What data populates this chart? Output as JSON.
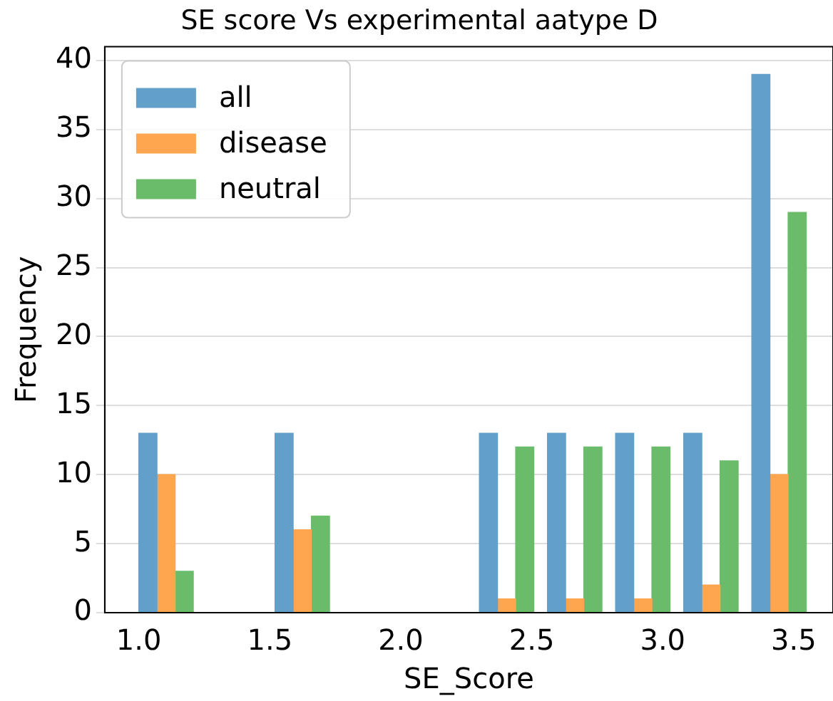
{
  "chart_data": {
    "type": "histogram",
    "title": "SE score Vs experimental aatype D",
    "xlabel": "SE_Score",
    "ylabel": "Frequency",
    "bins": [
      1.0,
      1.26,
      1.52,
      1.78,
      2.04,
      2.3,
      2.56,
      2.82,
      3.08,
      3.34,
      3.6
    ],
    "series": [
      {
        "name": "all",
        "color": "#62a0ca",
        "values": [
          13,
          0,
          13,
          0,
          0,
          13,
          13,
          13,
          13,
          39
        ]
      },
      {
        "name": "disease",
        "color": "#fea54f",
        "values": [
          10,
          0,
          6,
          0,
          0,
          1,
          1,
          1,
          2,
          10
        ]
      },
      {
        "name": "neutral",
        "color": "#6abc6a",
        "values": [
          3,
          0,
          7,
          0,
          0,
          12,
          12,
          12,
          11,
          29
        ]
      }
    ],
    "xlim": [
      0.87,
      3.65
    ],
    "xticks": [
      {
        "value": 1,
        "label": "1.0"
      },
      1.5,
      {
        "value": 2,
        "label": "2.0"
      },
      2.5,
      {
        "value": 3,
        "label": "3.0"
      },
      3.5
    ],
    "ylim": [
      0,
      41
    ],
    "yticks": [
      0,
      5,
      10,
      15,
      20,
      25,
      30,
      35,
      40
    ],
    "grid": "y",
    "legend": "top left"
  }
}
